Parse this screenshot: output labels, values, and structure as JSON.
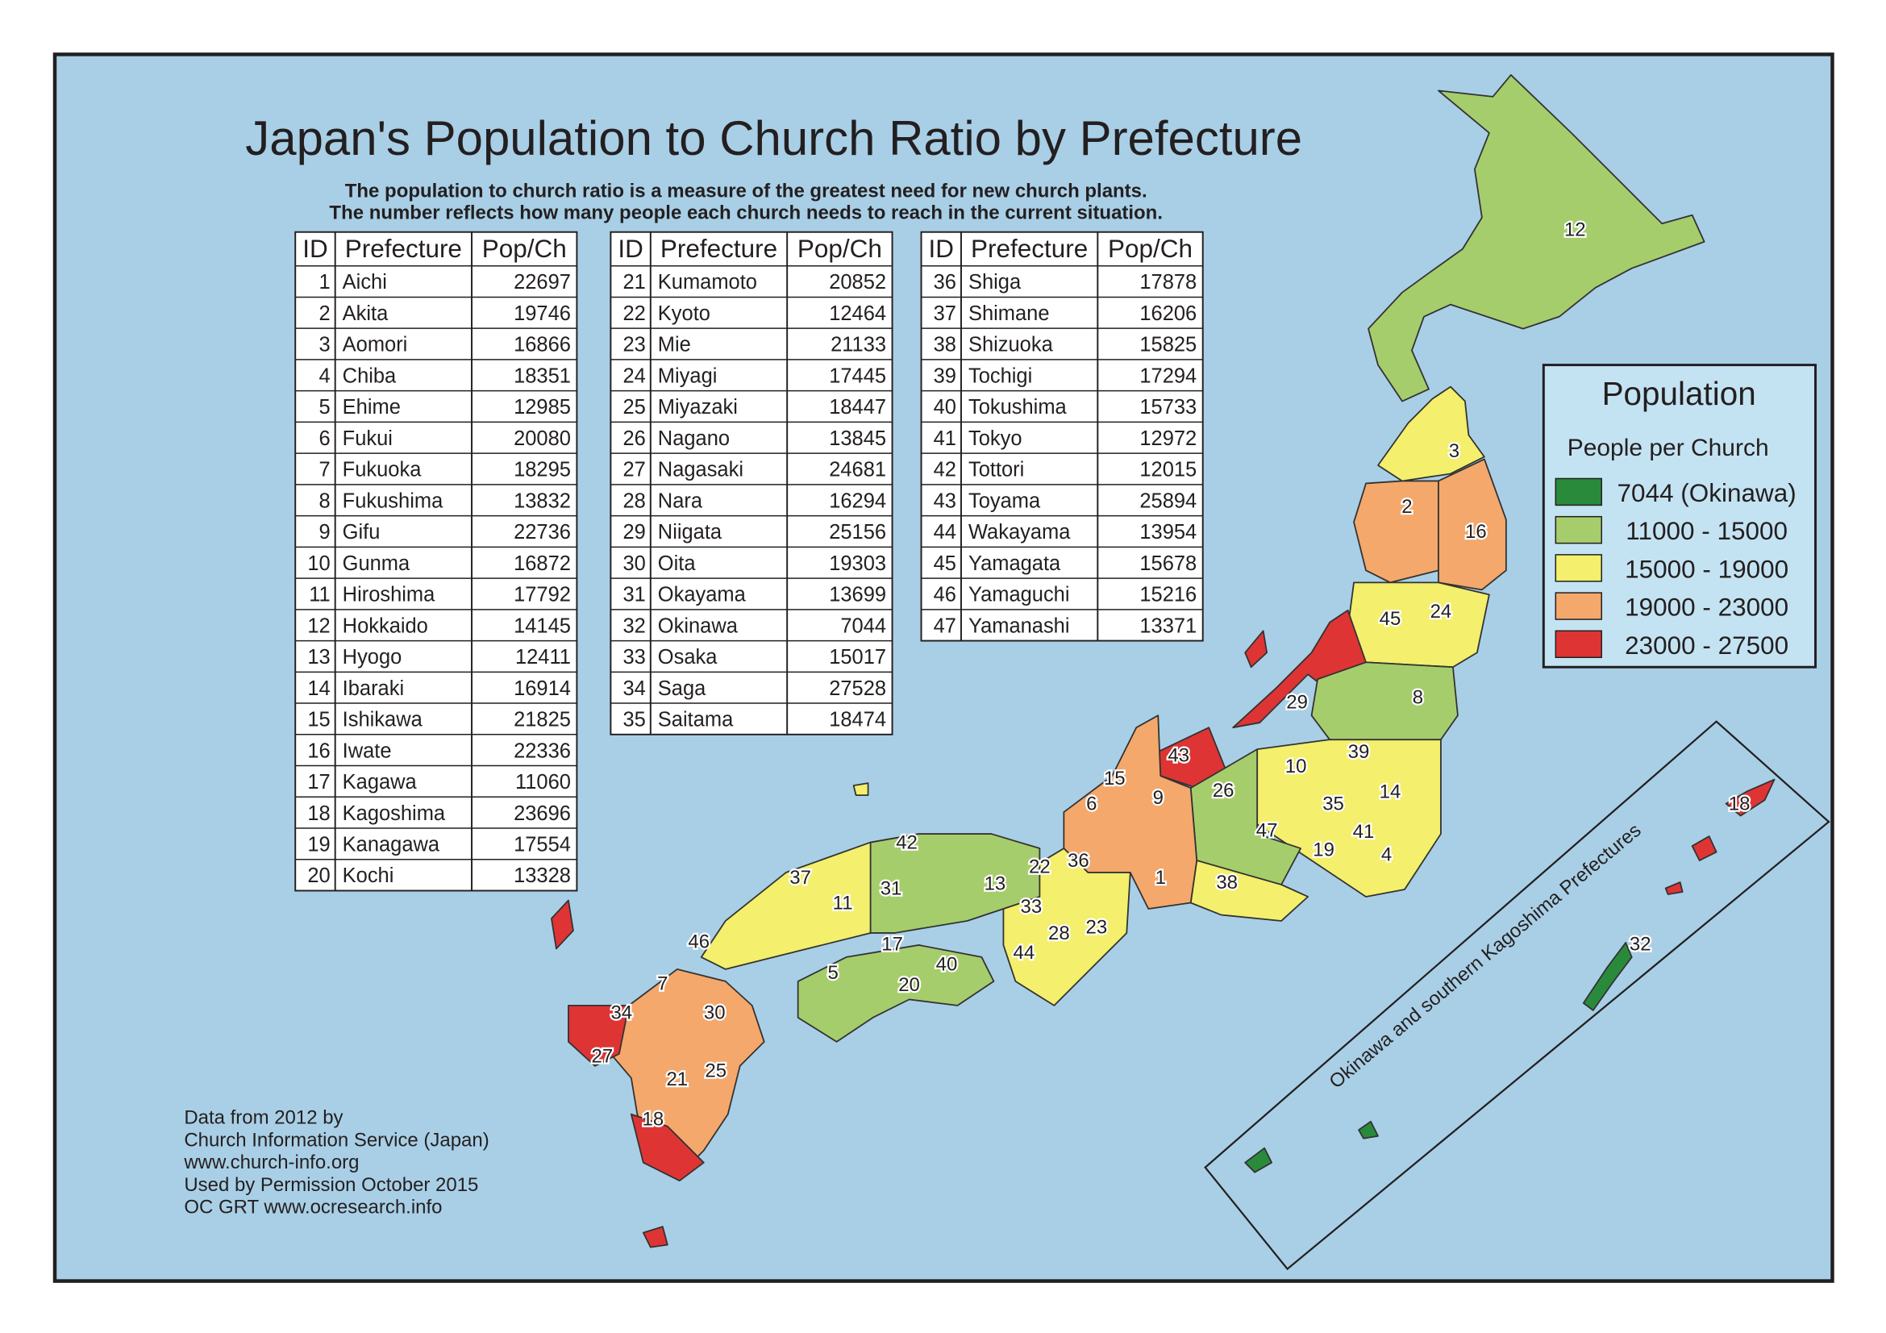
{
  "title": "Japan's Population to Church Ratio by Prefecture",
  "subtitle": [
    "The population to church ratio is a measure of the greatest need for new church plants.",
    "The number reflects how many people each church needs to reach in the current situation."
  ],
  "tables": [
    {
      "columns": [
        "ID",
        "Prefecture",
        "Pop/Ch"
      ],
      "rows": [
        [
          1,
          "Aichi",
          22697
        ],
        [
          2,
          "Akita",
          19746
        ],
        [
          3,
          "Aomori",
          16866
        ],
        [
          4,
          "Chiba",
          18351
        ],
        [
          5,
          "Ehime",
          12985
        ],
        [
          6,
          "Fukui",
          20080
        ],
        [
          7,
          "Fukuoka",
          18295
        ],
        [
          8,
          "Fukushima",
          13832
        ],
        [
          9,
          "Gifu",
          22736
        ],
        [
          10,
          "Gunma",
          16872
        ],
        [
          11,
          "Hiroshima",
          17792
        ],
        [
          12,
          "Hokkaido",
          14145
        ],
        [
          13,
          "Hyogo",
          12411
        ],
        [
          14,
          "Ibaraki",
          16914
        ],
        [
          15,
          "Ishikawa",
          21825
        ],
        [
          16,
          "Iwate",
          22336
        ],
        [
          17,
          "Kagawa",
          11060
        ],
        [
          18,
          "Kagoshima",
          23696
        ],
        [
          19,
          "Kanagawa",
          17554
        ],
        [
          20,
          "Kochi",
          13328
        ]
      ]
    },
    {
      "columns": [
        "ID",
        "Prefecture",
        "Pop/Ch"
      ],
      "rows": [
        [
          21,
          "Kumamoto",
          20852
        ],
        [
          22,
          "Kyoto",
          12464
        ],
        [
          23,
          "Mie",
          21133
        ],
        [
          24,
          "Miyagi",
          17445
        ],
        [
          25,
          "Miyazaki",
          18447
        ],
        [
          26,
          "Nagano",
          13845
        ],
        [
          27,
          "Nagasaki",
          24681
        ],
        [
          28,
          "Nara",
          16294
        ],
        [
          29,
          "Niigata",
          25156
        ],
        [
          30,
          "Oita",
          19303
        ],
        [
          31,
          "Okayama",
          13699
        ],
        [
          32,
          "Okinawa",
          7044
        ],
        [
          33,
          "Osaka",
          15017
        ],
        [
          34,
          "Saga",
          27528
        ],
        [
          35,
          "Saitama",
          18474
        ]
      ]
    },
    {
      "columns": [
        "ID",
        "Prefecture",
        "Pop/Ch"
      ],
      "rows": [
        [
          36,
          "Shiga",
          17878
        ],
        [
          37,
          "Shimane",
          16206
        ],
        [
          38,
          "Shizuoka",
          15825
        ],
        [
          39,
          "Tochigi",
          17294
        ],
        [
          40,
          "Tokushima",
          15733
        ],
        [
          41,
          "Tokyo",
          12972
        ],
        [
          42,
          "Tottori",
          12015
        ],
        [
          43,
          "Toyama",
          25894
        ],
        [
          44,
          "Wakayama",
          13954
        ],
        [
          45,
          "Yamagata",
          15678
        ],
        [
          46,
          "Yamaguchi",
          15216
        ],
        [
          47,
          "Yamanashi",
          13371
        ]
      ]
    }
  ],
  "legend": {
    "title": "Population",
    "subtitle": "People per Church",
    "items": [
      {
        "label": "7044 (Okinawa)",
        "color": "#2a8a3c"
      },
      {
        "label": "11000 - 15000",
        "color": "#a6cd6c"
      },
      {
        "label": "15000 - 19000",
        "color": "#f4ef6c"
      },
      {
        "label": "19000 - 23000",
        "color": "#f4a86c"
      },
      {
        "label": "23000 - 27500",
        "color": "#df3434"
      }
    ]
  },
  "map_labels": [
    "12",
    "3",
    "2",
    "16",
    "45",
    "24",
    "8",
    "29",
    "43",
    "10",
    "39",
    "14",
    "35",
    "41",
    "4",
    "19",
    "26",
    "47",
    "38",
    "1",
    "9",
    "15",
    "6",
    "36",
    "22",
    "13",
    "33",
    "28",
    "23",
    "44",
    "42",
    "31",
    "37",
    "11",
    "46",
    "17",
    "40",
    "5",
    "20",
    "7",
    "34",
    "30",
    "27",
    "21",
    "25",
    "18",
    "18",
    "32"
  ],
  "inset_label": "Okinawa and southern Kagoshima Prefectures",
  "credits": [
    "Data from 2012 by",
    "Church Information Service (Japan)",
    "www.church-info.org",
    "Used by Permission October 2015",
    "OC GRT  www.ocresearch.info"
  ]
}
